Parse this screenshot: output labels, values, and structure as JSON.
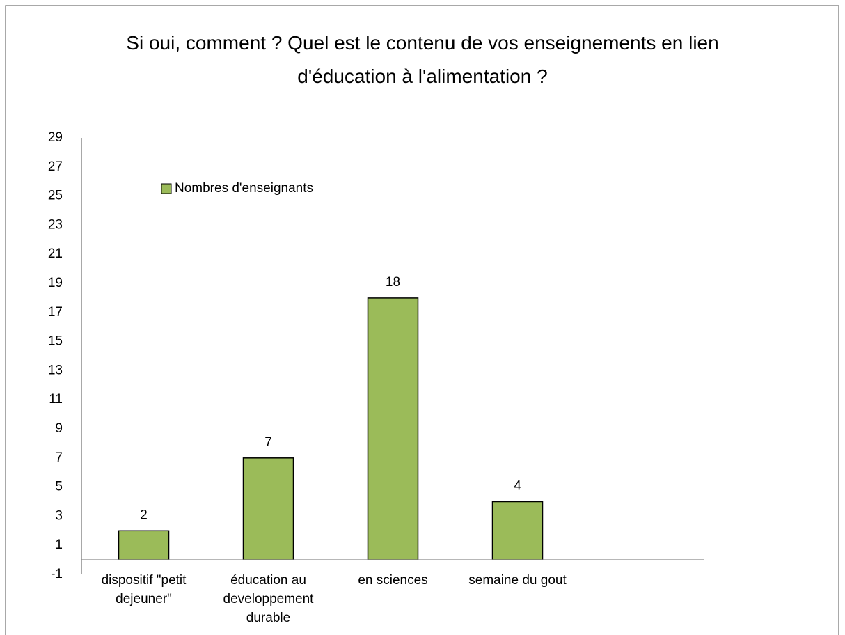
{
  "chart_data": {
    "type": "bar",
    "title": "Si oui, comment ? Quel est le contenu de vos enseignements en lien d'éducation à l'alimentation ?",
    "categories": [
      "dispositif \"petit dejeuner\"",
      "éducation au developpement durable",
      "en sciences",
      "semaine du gout",
      null
    ],
    "series": [
      {
        "name": "Nombres d'enseignants",
        "color": "#9bbb59",
        "values": [
          2,
          7,
          18,
          4,
          null
        ]
      }
    ],
    "ylim": [
      -1,
      29
    ],
    "yticks": [
      -1,
      1,
      3,
      5,
      7,
      9,
      11,
      13,
      15,
      17,
      19,
      21,
      23,
      25,
      27,
      29
    ],
    "legend": "top-left",
    "grid": false
  }
}
